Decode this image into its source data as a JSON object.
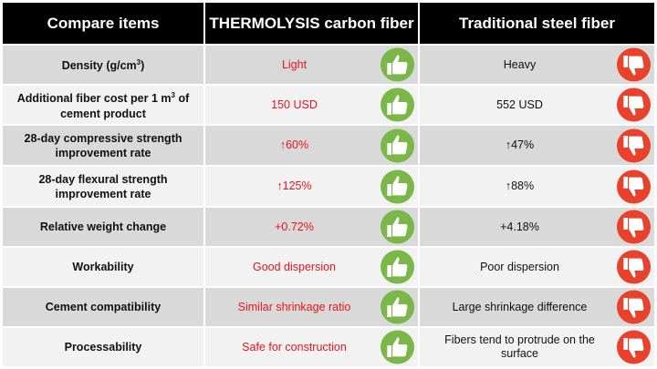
{
  "header": {
    "col1": "Compare items",
    "col2": "THERMOLYSIS carbon fiber",
    "col3": "Traditional steel fiber"
  },
  "rows": [
    {
      "item": "Density (g/cm",
      "item_sup": "3",
      "item_tail": ")",
      "carbon": "Light",
      "steel": "Heavy"
    },
    {
      "item": "Additional fiber cost per 1 m",
      "item_sup": "3",
      "item_tail": " of cement product",
      "carbon": "150 USD",
      "steel": "552 USD"
    },
    {
      "item": "28-day compressive strength improvement rate",
      "carbon": "↑60%",
      "steel": "↑47%"
    },
    {
      "item": "28-day flexural strength improvement rate",
      "carbon": "↑125%",
      "steel": "↑88%"
    },
    {
      "item": "Relative weight change",
      "carbon": "+0.72%",
      "steel": "+4.18%"
    },
    {
      "item": "Workability",
      "carbon": "Good dispersion",
      "steel": "Poor dispersion"
    },
    {
      "item": "Cement compatibility",
      "carbon": "Similar shrinkage ratio",
      "steel": "Large shrinkage difference"
    },
    {
      "item": "Processability",
      "carbon": "Safe for construction",
      "steel": "Fibers tend to protrude on the surface"
    }
  ],
  "icons": {
    "carbon": "thumbs-up-icon",
    "steel": "thumbs-down-icon"
  },
  "colors": {
    "header_bg": "#000000",
    "good_text": "#e8141c",
    "thumb_up": "#7ab648",
    "thumb_down": "#e8412c",
    "row_dark": "#d9d9d9",
    "row_light": "#f2f2f2"
  }
}
